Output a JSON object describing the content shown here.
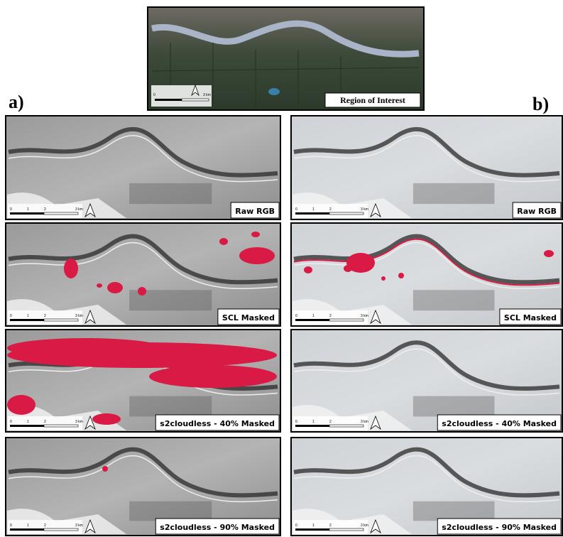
{
  "overview": {
    "caption": "Region of Interest"
  },
  "scale_labels": [
    "0",
    "1",
    "2",
    "3 km"
  ],
  "columns": [
    {
      "label": "a)",
      "panels": [
        {
          "caption": "Raw RGB"
        },
        {
          "caption": "SCL Masked"
        },
        {
          "caption": "s2cloudless - 40% Masked"
        },
        {
          "caption": "s2cloudless - 90% Masked"
        }
      ]
    },
    {
      "label": "b)",
      "panels": [
        {
          "caption": "Raw RGB"
        },
        {
          "caption": "SCL Masked"
        },
        {
          "caption": "s2cloudless - 40% Masked"
        },
        {
          "caption": "s2cloudless - 90% Masked"
        }
      ]
    }
  ]
}
